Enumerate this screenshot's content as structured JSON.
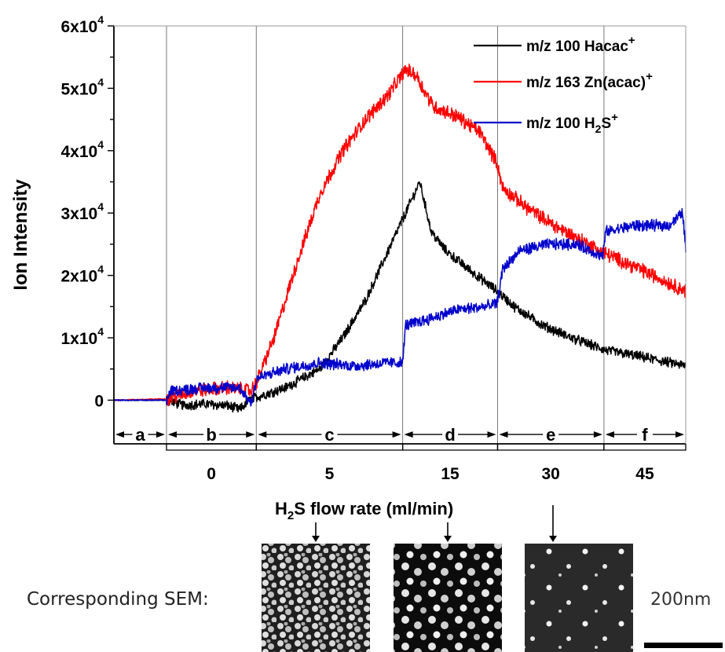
{
  "chart_data": {
    "type": "line",
    "ylabel": "Ion Intensity",
    "xlabel": "H2S flow rate (ml/min)",
    "ylim": [
      -7000,
      60000
    ],
    "xlim": [
      0,
      100
    ],
    "yticks": [
      {
        "value": 0,
        "mant": "0",
        "exp": ""
      },
      {
        "value": 10000,
        "mant": "1x10",
        "exp": "4"
      },
      {
        "value": 20000,
        "mant": "2x10",
        "exp": "4"
      },
      {
        "value": 30000,
        "mant": "3x10",
        "exp": "4"
      },
      {
        "value": 40000,
        "mant": "4x10",
        "exp": "4"
      },
      {
        "value": 50000,
        "mant": "5x10",
        "exp": "4"
      },
      {
        "value": 60000,
        "mant": "6x10",
        "exp": "4"
      }
    ],
    "regions": [
      {
        "label": "a",
        "start": 0,
        "end": 9.2,
        "flow": ""
      },
      {
        "label": "b",
        "start": 9.2,
        "end": 24.9,
        "flow": "0"
      },
      {
        "label": "c",
        "start": 24.9,
        "end": 50.5,
        "flow": "5"
      },
      {
        "label": "d",
        "start": 50.5,
        "end": 67.1,
        "flow": "15"
      },
      {
        "label": "e",
        "start": 67.1,
        "end": 85.7,
        "flow": "30"
      },
      {
        "label": "f",
        "start": 85.7,
        "end": 100,
        "flow": "45"
      }
    ],
    "legend_position": "top-right",
    "series": [
      {
        "name": "m/z 100 Hacac",
        "sup": "+",
        "color": "#000000",
        "noise": 700,
        "points": [
          [
            0,
            0
          ],
          [
            9.2,
            0
          ],
          [
            12,
            -800
          ],
          [
            16,
            -600
          ],
          [
            20,
            -900
          ],
          [
            22,
            -1500
          ],
          [
            24,
            200
          ],
          [
            25,
            500
          ],
          [
            30,
            2000
          ],
          [
            36,
            5000
          ],
          [
            40,
            10000
          ],
          [
            44,
            16000
          ],
          [
            48,
            24000
          ],
          [
            51,
            30000
          ],
          [
            53,
            34000
          ],
          [
            53.5,
            35000
          ],
          [
            54.5,
            31000
          ],
          [
            55.5,
            27000
          ],
          [
            58,
            24000
          ],
          [
            62,
            21000
          ],
          [
            67,
            17500
          ],
          [
            70,
            15000
          ],
          [
            75,
            12000
          ],
          [
            80,
            10000
          ],
          [
            86,
            8000
          ],
          [
            92,
            7000
          ],
          [
            100,
            5500
          ]
        ]
      },
      {
        "name": "m/z 163 Zn(acac)",
        "sup": "+",
        "color": "#ff0000",
        "noise": 1000,
        "points": [
          [
            0,
            0
          ],
          [
            9.2,
            200
          ],
          [
            14,
            1500
          ],
          [
            20,
            2000
          ],
          [
            24,
            1500
          ],
          [
            25,
            3000
          ],
          [
            28,
            10000
          ],
          [
            32,
            22000
          ],
          [
            36,
            33000
          ],
          [
            40,
            40000
          ],
          [
            44,
            45000
          ],
          [
            48,
            49000
          ],
          [
            51,
            53000
          ],
          [
            53,
            52000
          ],
          [
            54,
            50000
          ],
          [
            56,
            47000
          ],
          [
            60,
            45500
          ],
          [
            64,
            43000
          ],
          [
            67,
            38000
          ],
          [
            68,
            34000
          ],
          [
            72,
            31000
          ],
          [
            77,
            28000
          ],
          [
            81,
            26000
          ],
          [
            86,
            23500
          ],
          [
            92,
            21000
          ],
          [
            100,
            17500
          ]
        ]
      },
      {
        "name": "m/z 100 H",
        "sub": "2",
        "tail": "S",
        "sup": "+",
        "color": "#0000cc",
        "noise": 800,
        "points": [
          [
            0,
            0
          ],
          [
            9.2,
            0
          ],
          [
            10,
            1500
          ],
          [
            16,
            2000
          ],
          [
            22,
            2000
          ],
          [
            24,
            -500
          ],
          [
            25,
            3500
          ],
          [
            30,
            5000
          ],
          [
            36,
            6000
          ],
          [
            42,
            5500
          ],
          [
            48,
            6000
          ],
          [
            50.5,
            6000
          ],
          [
            51,
            12000
          ],
          [
            55,
            13000
          ],
          [
            60,
            14500
          ],
          [
            65,
            15000
          ],
          [
            67,
            15500
          ],
          [
            68,
            21000
          ],
          [
            71,
            24000
          ],
          [
            76,
            25000
          ],
          [
            81,
            25000
          ],
          [
            85.5,
            23000
          ],
          [
            86,
            27000
          ],
          [
            91,
            28000
          ],
          [
            97,
            28000
          ],
          [
            99.5,
            30000
          ],
          [
            100,
            24000
          ]
        ]
      }
    ]
  },
  "flow_label": {
    "pre": "H",
    "sub": "2",
    "post": "S flow rate (ml/min)"
  },
  "sem": {
    "caption": "Corresponding SEM:",
    "scale_label": "200nm"
  }
}
